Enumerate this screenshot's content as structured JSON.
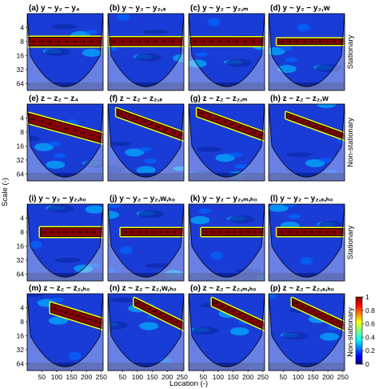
{
  "chart_data": {
    "type": "heatmap",
    "xlabel": "Location (-)",
    "ylabel": "Scale (-)",
    "x_ticks": [
      "50",
      "100",
      "150",
      "200",
      "250"
    ],
    "y_ticks": [
      "4",
      "8",
      "16",
      "32",
      "64"
    ],
    "xlim": [
      1,
      256
    ],
    "y_scale": "log2",
    "colorbar": {
      "min": 0,
      "max": 1,
      "ticks": [
        "0",
        "0.2",
        "0.4",
        "0.6",
        "0.8",
        "1"
      ]
    },
    "colormap": [
      "#00007f",
      "#0000ff",
      "#0080ff",
      "#00ffff",
      "#80ff80",
      "#ffff00",
      "#ff8000",
      "#ff0000",
      "#7f0000"
    ],
    "row_labels": [
      "Stationary",
      "Non-stationary",
      "Stationary",
      "Non-stationary"
    ],
    "panels": [
      {
        "label": "(a)",
        "title": "y ~ y₂ − y₄",
        "band": {
          "scale_start": 8,
          "scale_end": 8,
          "x_start": 5,
          "thickness": 0.55
        }
      },
      {
        "label": "(b)",
        "title": "y ~ y₂ − y₂,ₛ",
        "band": {
          "scale_start": 8,
          "scale_end": 8,
          "x_start": 5,
          "thickness": 0.5
        }
      },
      {
        "label": "(c)",
        "title": "y ~ y₂ − y₂,ₘ",
        "band": {
          "scale_start": 8,
          "scale_end": 8,
          "x_start": 5,
          "thickness": 0.5
        }
      },
      {
        "label": "(d)",
        "title": "y ~ y₂ − y₂,w",
        "band": {
          "scale_start": 8,
          "scale_end": 8,
          "x_start": 30,
          "thickness": 0.35
        }
      },
      {
        "label": "(e)",
        "title": "z ~ z₂ − z₄",
        "band": {
          "scale_start": 4,
          "scale_end": 11,
          "x_start": 5,
          "thickness": 0.6
        }
      },
      {
        "label": "(f)",
        "title": "z ~ z₂ − z₂,ₛ",
        "band": {
          "scale_start": 3,
          "scale_end": 10,
          "x_start": 30,
          "thickness": 0.45
        }
      },
      {
        "label": "(g)",
        "title": "z ~ z₂ − z₂,ₘ",
        "band": {
          "scale_start": 3,
          "scale_end": 10,
          "x_start": 30,
          "thickness": 0.45
        }
      },
      {
        "label": "(h)",
        "title": "z ~ z₂ − z₂,w",
        "band": {
          "scale_start": 3.5,
          "scale_end": 10,
          "x_start": 60,
          "thickness": 0.35
        }
      },
      {
        "label": "(i)",
        "title": "y ~ y₂ − y₂,ₕ₀",
        "band": {
          "scale_start": 8,
          "scale_end": 8,
          "x_start": 45,
          "thickness": 0.55
        }
      },
      {
        "label": "(j)",
        "title": "y ~ y₂ − y₂,w,ₕ₀",
        "band": {
          "scale_start": 8,
          "scale_end": 8,
          "x_start": 45,
          "thickness": 0.45
        }
      },
      {
        "label": "(k)",
        "title": "y ~ y₂ − y₂,ₘ,ₕ₀",
        "band": {
          "scale_start": 8,
          "scale_end": 8,
          "x_start": 45,
          "thickness": 0.45
        }
      },
      {
        "label": "(l)",
        "title": "y ~ y₂ − y₂,ₛ,ₕ₀",
        "band": {
          "scale_start": 8,
          "scale_end": 8,
          "x_start": 30,
          "thickness": 0.45
        }
      },
      {
        "label": "(m)",
        "title": "z ~ z₂ − z₂,ₕ₀",
        "band": {
          "scale_start": 4,
          "scale_end": 9,
          "x_start": 80,
          "thickness": 0.6
        }
      },
      {
        "label": "(n)",
        "title": "z ~ z₂ − z₂,w,ₕ₀",
        "band": {
          "scale_start": 3,
          "scale_end": 10,
          "x_start": 90,
          "thickness": 0.45
        }
      },
      {
        "label": "(o)",
        "title": "z ~ z₂ − z₂,ₘ,ₕ₀",
        "band": {
          "scale_start": 3,
          "scale_end": 10,
          "x_start": 80,
          "thickness": 0.45
        }
      },
      {
        "label": "(p)",
        "title": "z ~ z₂ − z₂,ₛ,ₕ₀",
        "band": {
          "scale_start": 3,
          "scale_end": 10,
          "x_start": 80,
          "thickness": 0.45
        }
      }
    ]
  }
}
